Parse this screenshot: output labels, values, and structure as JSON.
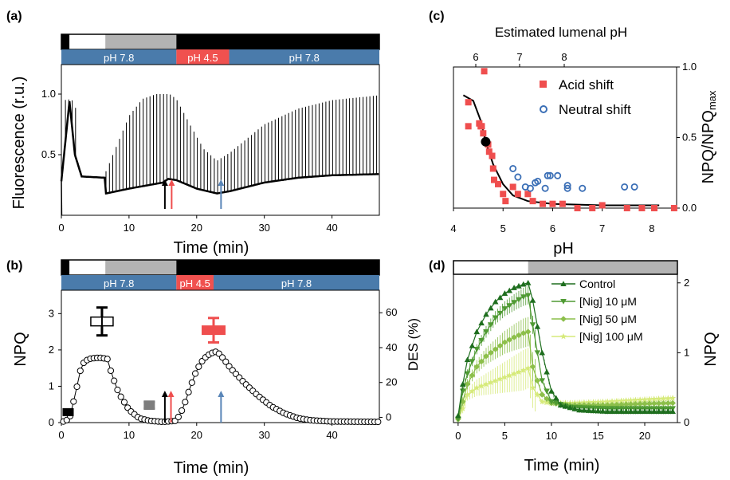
{
  "colors": {
    "ph_bar": "#4a7bab",
    "acid_bar": "#f0514f",
    "light_dark": "#000000",
    "light_white": "#ffffff",
    "light_gray": "#b3b3b3",
    "acid_series": "#ef4e4e",
    "neutral_series": "#3b6fb6",
    "arrow_black": "#000000",
    "arrow_red": "#ef4e4e",
    "arrow_blue": "#5a86b8",
    "d_control": "#1e6e1e",
    "d_nig10": "#4f9a33",
    "d_nig50": "#8cbf4a",
    "d_nig100": "#d6ea7a"
  },
  "panels": {
    "a": {
      "letter": "(a)",
      "bar_labels": [
        "pH 7.8",
        "pH 4.5",
        "pH 7.8"
      ]
    },
    "b": {
      "letter": "(b)",
      "bar_labels": [
        "pH 7.8",
        "pH 4.5",
        "pH 7.8"
      ]
    },
    "c": {
      "letter": "(c)"
    },
    "d": {
      "letter": "(d)"
    }
  },
  "chart_data": [
    {
      "panel": "a",
      "type": "line",
      "xlabel": "Time (min)",
      "ylabel": "Fluorescence (r.u.)",
      "xlim": [
        0,
        47
      ],
      "ylim": [
        0,
        1.25
      ],
      "xticks": [
        "0",
        "10",
        "20",
        "30",
        "40"
      ],
      "yticks": [
        "0.5",
        "1.0"
      ],
      "segments": [
        {
          "from": 0,
          "to": 1.2,
          "condition": "dark"
        },
        {
          "from": 1.2,
          "to": 6.5,
          "condition": "light"
        },
        {
          "from": 6.5,
          "to": 17,
          "condition": "dim light"
        },
        {
          "from": 17,
          "to": 47,
          "condition": "dark"
        }
      ],
      "ph_segments": [
        {
          "from": 0,
          "to": 17,
          "label": "pH 7.8"
        },
        {
          "from": 17,
          "to": 24.8,
          "label": "pH 4.5"
        },
        {
          "from": 24.8,
          "to": 47,
          "label": "pH 7.8"
        }
      ],
      "baseline_fs": [
        [
          0,
          0.28
        ],
        [
          1.2,
          0.94
        ],
        [
          2.0,
          0.5
        ],
        [
          3.0,
          0.32
        ],
        [
          6.4,
          0.31
        ],
        [
          6.6,
          0.18
        ],
        [
          10,
          0.22
        ],
        [
          15,
          0.27
        ],
        [
          15.8,
          0.3
        ],
        [
          17,
          0.29
        ],
        [
          20,
          0.22
        ],
        [
          23,
          0.18
        ],
        [
          25,
          0.2
        ],
        [
          30,
          0.27
        ],
        [
          35,
          0.31
        ],
        [
          40,
          0.33
        ],
        [
          47,
          0.34
        ]
      ],
      "fm_envelope": [
        [
          0.5,
          0.95
        ],
        [
          1.5,
          0.96
        ],
        [
          6.5,
          0.35
        ],
        [
          8,
          0.55
        ],
        [
          10,
          0.82
        ],
        [
          12,
          0.96
        ],
        [
          14,
          1.0
        ],
        [
          16,
          1.0
        ],
        [
          17,
          0.96
        ],
        [
          19,
          0.75
        ],
        [
          21,
          0.55
        ],
        [
          23,
          0.45
        ],
        [
          25,
          0.52
        ],
        [
          30,
          0.75
        ],
        [
          35,
          0.88
        ],
        [
          40,
          0.95
        ],
        [
          47,
          0.99
        ]
      ],
      "arrows": [
        {
          "x": 15.3,
          "color": "black"
        },
        {
          "x": 16.3,
          "color": "red"
        },
        {
          "x": 23.6,
          "color": "blue"
        }
      ]
    },
    {
      "panel": "b",
      "type": "scatter",
      "xlabel": "Time (min)",
      "ylabel": "NPQ",
      "ylabel_right": "DES (%)",
      "xlim": [
        0,
        47
      ],
      "ylim": [
        0,
        3.6
      ],
      "ylim_right": [
        -3,
        72
      ],
      "xticks": [
        "0",
        "10",
        "20",
        "30",
        "40"
      ],
      "yticks": [
        "0",
        "1",
        "2",
        "3"
      ],
      "yticks_right": [
        "0",
        "20",
        "40",
        "60"
      ],
      "ph_segments": [
        {
          "from": 0,
          "to": 17,
          "label": "pH 7.8"
        },
        {
          "from": 17,
          "to": 22.5,
          "label": "pH 4.5"
        },
        {
          "from": 22.5,
          "to": 47,
          "label": "pH 7.8"
        }
      ],
      "npq_curve": [
        [
          0.3,
          0.03
        ],
        [
          1.2,
          0.1
        ],
        [
          2.2,
          0.9
        ],
        [
          3.0,
          1.6
        ],
        [
          4,
          1.75
        ],
        [
          5,
          1.78
        ],
        [
          6,
          1.78
        ],
        [
          6.8,
          1.75
        ],
        [
          7.5,
          1.3
        ],
        [
          8.5,
          0.8
        ],
        [
          10,
          0.35
        ],
        [
          11.5,
          0.12
        ],
        [
          13,
          0.05
        ],
        [
          15,
          0.02
        ],
        [
          17,
          0.05
        ],
        [
          18,
          0.4
        ],
        [
          19,
          0.95
        ],
        [
          20,
          1.45
        ],
        [
          21,
          1.75
        ],
        [
          22,
          1.9
        ],
        [
          23,
          1.96
        ],
        [
          24,
          1.75
        ],
        [
          25,
          1.5
        ],
        [
          27,
          1.1
        ],
        [
          29,
          0.75
        ],
        [
          31,
          0.45
        ],
        [
          33,
          0.25
        ],
        [
          35,
          0.12
        ],
        [
          37,
          0.06
        ],
        [
          40,
          0.03
        ],
        [
          47,
          0.02
        ]
      ],
      "des_points": [
        {
          "x": 1,
          "y": 3,
          "err": 1,
          "marker": "filled-square",
          "color": "black"
        },
        {
          "x": 6,
          "y": 55,
          "err": 8,
          "marker": "open-square",
          "color": "black"
        },
        {
          "x": 13,
          "y": 7,
          "err": 2,
          "marker": "filled-square",
          "color": "gray"
        },
        {
          "x": 22.5,
          "y": 50,
          "err": 7,
          "marker": "filled-square",
          "color": "red"
        }
      ],
      "arrows": [
        {
          "x": 15.3,
          "color": "black"
        },
        {
          "x": 16.2,
          "color": "red"
        },
        {
          "x": 23.6,
          "color": "blue"
        }
      ]
    },
    {
      "panel": "c",
      "type": "scatter",
      "xlabel": "pH",
      "xlabel_top": "Estimated lumenal pH",
      "ylabel": "NPQ/NPQmax",
      "xlim": [
        4,
        8.5
      ],
      "ylim": [
        0,
        1.0
      ],
      "xticks": [
        "4",
        "5",
        "6",
        "7",
        "8"
      ],
      "xticks_top": [
        "6",
        "7",
        "8"
      ],
      "yticks": [
        "0.0",
        "0.5",
        "1.0"
      ],
      "series": [
        {
          "name": "Acid shift",
          "marker": "square",
          "points": [
            [
              4.3,
              0.58
            ],
            [
              4.3,
              0.75
            ],
            [
              4.52,
              0.6
            ],
            [
              4.55,
              0.58
            ],
            [
              4.57,
              0.58
            ],
            [
              4.6,
              0.53
            ],
            [
              4.62,
              0.97
            ],
            [
              4.7,
              0.45
            ],
            [
              4.72,
              0.4
            ],
            [
              4.78,
              0.37
            ],
            [
              4.8,
              0.28
            ],
            [
              4.82,
              0.2
            ],
            [
              4.9,
              0.17
            ],
            [
              5.0,
              0.1
            ],
            [
              5.05,
              0.05
            ],
            [
              5.2,
              0.15
            ],
            [
              5.3,
              0.1
            ],
            [
              5.5,
              0.1
            ],
            [
              5.6,
              0.05
            ],
            [
              5.8,
              0.03
            ],
            [
              6.0,
              0.03
            ],
            [
              6.2,
              0.03
            ],
            [
              6.5,
              0.0
            ],
            [
              6.8,
              0.0
            ],
            [
              7.0,
              0.02
            ],
            [
              7.5,
              0.0
            ],
            [
              7.8,
              0.0
            ],
            [
              8.05,
              0.0
            ],
            [
              8.45,
              0.0
            ]
          ]
        },
        {
          "name": "Neutral shift",
          "marker": "circle",
          "points": [
            [
              5.2,
              0.28
            ],
            [
              5.3,
              0.22
            ],
            [
              5.45,
              0.15
            ],
            [
              5.55,
              0.14
            ],
            [
              5.65,
              0.18
            ],
            [
              5.7,
              0.19
            ],
            [
              5.85,
              0.14
            ],
            [
              5.9,
              0.23
            ],
            [
              5.95,
              0.23
            ],
            [
              6.1,
              0.23
            ],
            [
              6.3,
              0.14
            ],
            [
              6.3,
              0.16
            ],
            [
              6.6,
              0.14
            ],
            [
              7.45,
              0.15
            ],
            [
              7.65,
              0.15
            ]
          ]
        }
      ],
      "highlight_point": [
        4.65,
        0.47
      ],
      "fit_curve": [
        [
          4.2,
          0.8
        ],
        [
          4.4,
          0.76
        ],
        [
          4.55,
          0.62
        ],
        [
          4.65,
          0.47
        ],
        [
          4.8,
          0.31
        ],
        [
          5.0,
          0.17
        ],
        [
          5.2,
          0.09
        ],
        [
          5.5,
          0.05
        ],
        [
          6.0,
          0.03
        ],
        [
          7.0,
          0.02
        ],
        [
          8.15,
          0.02
        ]
      ]
    },
    {
      "panel": "d",
      "type": "line",
      "xlabel": "Time (min)",
      "ylabel": "NPQ",
      "xlim": [
        -0.5,
        23.5
      ],
      "ylim": [
        0,
        2.1
      ],
      "xticks": [
        "0",
        "5",
        "10",
        "15",
        "20"
      ],
      "yticks": [
        "0",
        "1",
        "2"
      ],
      "light_segments": [
        {
          "from": -0.5,
          "to": 7.5,
          "condition": "light"
        },
        {
          "from": 7.5,
          "to": 23.5,
          "condition": "dark"
        }
      ],
      "series": [
        {
          "name": "Control",
          "marker": "triangle-up",
          "points": [
            [
              0,
              0.1
            ],
            [
              0.5,
              0.55
            ],
            [
              1,
              0.9
            ],
            [
              2,
              1.3
            ],
            [
              3,
              1.55
            ],
            [
              4,
              1.73
            ],
            [
              5,
              1.85
            ],
            [
              6,
              1.93
            ],
            [
              7,
              1.98
            ],
            [
              7.5,
              2.0
            ],
            [
              8,
              1.75
            ],
            [
              9,
              1.0
            ],
            [
              10,
              0.45
            ],
            [
              11,
              0.25
            ],
            [
              13,
              0.18
            ],
            [
              16,
              0.16
            ],
            [
              20,
              0.16
            ],
            [
              23,
              0.16
            ]
          ]
        },
        {
          "name": "[Nig] 10 μM",
          "marker": "triangle-down",
          "points": [
            [
              0,
              0.05
            ],
            [
              0.5,
              0.45
            ],
            [
              1,
              0.7
            ],
            [
              2,
              1.05
            ],
            [
              3,
              1.3
            ],
            [
              4,
              1.5
            ],
            [
              5,
              1.63
            ],
            [
              6,
              1.72
            ],
            [
              7,
              1.8
            ],
            [
              7.5,
              1.82
            ],
            [
              8,
              1.4
            ],
            [
              9,
              0.6
            ],
            [
              10,
              0.3
            ],
            [
              12,
              0.22
            ],
            [
              16,
              0.2
            ],
            [
              20,
              0.2
            ],
            [
              23,
              0.2
            ]
          ]
        },
        {
          "name": "[Nig] 50 μM",
          "marker": "diamond",
          "points": [
            [
              0,
              0.05
            ],
            [
              0.5,
              0.3
            ],
            [
              1,
              0.55
            ],
            [
              2,
              0.8
            ],
            [
              3,
              0.95
            ],
            [
              4,
              1.05
            ],
            [
              5,
              1.15
            ],
            [
              6,
              1.22
            ],
            [
              7,
              1.28
            ],
            [
              7.5,
              1.3
            ],
            [
              8,
              0.8
            ],
            [
              9,
              0.4
            ],
            [
              10,
              0.28
            ],
            [
              12,
              0.25
            ],
            [
              16,
              0.25
            ],
            [
              20,
              0.27
            ],
            [
              23,
              0.28
            ]
          ]
        },
        {
          "name": "[Nig] 100 μM",
          "marker": "star",
          "points": [
            [
              0,
              0.05
            ],
            [
              0.5,
              0.2
            ],
            [
              1,
              0.4
            ],
            [
              2,
              0.5
            ],
            [
              3,
              0.55
            ],
            [
              4,
              0.6
            ],
            [
              5,
              0.65
            ],
            [
              6,
              0.7
            ],
            [
              7,
              0.75
            ],
            [
              7.5,
              0.78
            ],
            [
              8,
              0.5
            ],
            [
              9,
              0.3
            ],
            [
              10,
              0.28
            ],
            [
              12,
              0.28
            ],
            [
              16,
              0.3
            ],
            [
              20,
              0.33
            ],
            [
              23,
              0.35
            ]
          ]
        }
      ]
    }
  ]
}
